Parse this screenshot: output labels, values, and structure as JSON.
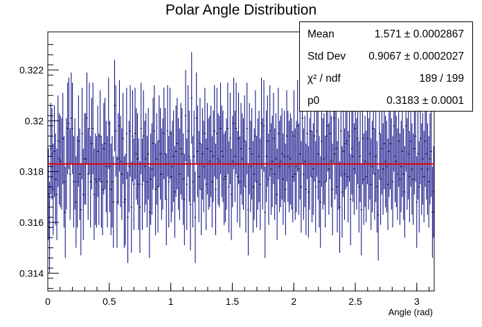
{
  "chart_data": {
    "type": "scatter",
    "title": "Polar Angle Distribution",
    "xlabel": "Angle (rad)",
    "ylabel": "",
    "xlim": [
      0,
      3.1416
    ],
    "ylim": [
      0.3133,
      0.3235
    ],
    "xticks": [
      "0",
      "0.5",
      "1",
      "1.5",
      "2",
      "2.5",
      "3"
    ],
    "xtick_values": [
      0,
      0.5,
      1,
      1.5,
      2,
      2.5,
      3
    ],
    "yticks": [
      "0.314",
      "0.316",
      "0.318",
      "0.32",
      "0.322"
    ],
    "ytick_values": [
      0.314,
      0.316,
      0.318,
      0.32,
      0.322
    ],
    "series": [
      {
        "name": "",
        "style": "errorbar",
        "color": "#000080",
        "bins": 314,
        "y": [
          0.3171,
          0.3158,
          0.3189,
          0.3187,
          0.3173,
          0.3188,
          0.3177,
          0.3171,
          0.3192,
          0.3185,
          0.3184,
          0.3183,
          0.3193,
          0.3176,
          0.3164,
          0.3183,
          0.3197,
          0.3199,
          0.3179,
          0.3201,
          0.3197,
          0.3176,
          0.3183,
          0.3168,
          0.3176,
          0.3192,
          0.3179,
          0.3165,
          0.3195,
          0.3171,
          0.3185,
          0.3185,
          0.3201,
          0.3179,
          0.3197,
          0.3176,
          0.3191,
          0.3197,
          0.3171,
          0.3177,
          0.3176,
          0.3188,
          0.3177,
          0.3194,
          0.3176,
          0.3173,
          0.3189,
          0.3191,
          0.3182,
          0.3176,
          0.3199,
          0.3182,
          0.3173,
          0.3176,
          0.3168,
          0.3206,
          0.3196,
          0.3168,
          0.3185,
          0.3198,
          0.3184,
          0.3179,
          0.3193,
          0.3168,
          0.3169,
          0.3195,
          0.3162,
          0.3182,
          0.3196,
          0.3166,
          0.3194,
          0.3175,
          0.3195,
          0.3187,
          0.3185,
          0.3175,
          0.3166,
          0.3197,
          0.3175,
          0.3194,
          0.3182,
          0.3185,
          0.3176,
          0.3187,
          0.3164,
          0.3177,
          0.3181,
          0.3191,
          0.3196,
          0.3173,
          0.3185,
          0.3174,
          0.3192,
          0.3187,
          0.3179,
          0.3183,
          0.3195,
          0.3187,
          0.3169,
          0.3196,
          0.3176,
          0.3195,
          0.3178,
          0.3182,
          0.3186,
          0.3172,
          0.3188,
          0.3191,
          0.3183,
          0.3179,
          0.3189,
          0.3187,
          0.3177,
          0.3169,
          0.3202,
          0.3175,
          0.3196,
          0.3186,
          0.3167,
          0.3209,
          0.3176,
          0.3186,
          0.3162,
          0.3201,
          0.3188,
          0.3178,
          0.3191,
          0.3173,
          0.3187,
          0.3182,
          0.3195,
          0.3175,
          0.3189,
          0.3183,
          0.3184,
          0.3188,
          0.3176,
          0.3186,
          0.3196,
          0.3173,
          0.3195,
          0.3185,
          0.3184,
          0.3197,
          0.3188,
          0.3186,
          0.3177,
          0.3178,
          0.3183,
          0.3197,
          0.3174,
          0.3193,
          0.3171,
          0.3184,
          0.3199,
          0.3186,
          0.3197,
          0.3178,
          0.3193,
          0.3176,
          0.3189,
          0.3185,
          0.3183,
          0.3192,
          0.3174,
          0.3197,
          0.3165,
          0.3189,
          0.3182,
          0.3187,
          0.3174,
          0.3179,
          0.3194,
          0.3176,
          0.3183,
          0.3186,
          0.3175,
          0.3199,
          0.3183,
          0.3198,
          0.3164,
          0.3186,
          0.3192,
          0.3177,
          0.3196,
          0.3181,
          0.3184,
          0.3193,
          0.3179,
          0.3185,
          0.3171,
          0.3195,
          0.3182,
          0.3184,
          0.3187,
          0.3177,
          0.3186,
          0.3173,
          0.3194,
          0.3186,
          0.3182,
          0.3185,
          0.3183,
          0.3178,
          0.3194,
          0.3179,
          0.3182,
          0.3198,
          0.3181,
          0.3187,
          0.3174,
          0.3201,
          0.3179,
          0.3184,
          0.3173,
          0.3195,
          0.3172,
          0.3183,
          0.3196,
          0.3178,
          0.3181,
          0.3194,
          0.3174,
          0.3196,
          0.3187,
          0.3176,
          0.3168,
          0.3192,
          0.3183,
          0.3185,
          0.3176,
          0.3194,
          0.3198,
          0.3181,
          0.3195,
          0.3184,
          0.3173,
          0.3201,
          0.3187,
          0.3189,
          0.3174,
          0.3183,
          0.3166,
          0.3196,
          0.3172,
          0.3188,
          0.3179,
          0.3191,
          0.3192,
          0.3178,
          0.3194,
          0.3169,
          0.3189,
          0.3186,
          0.3181,
          0.3197,
          0.3183,
          0.3193,
          0.3174,
          0.3186,
          0.3165,
          0.3193,
          0.3177,
          0.3184,
          0.3178,
          0.3193,
          0.3183,
          0.3187,
          0.3175,
          0.3182,
          0.3197,
          0.3179,
          0.3186,
          0.3174,
          0.3163,
          0.3195,
          0.3177,
          0.3189,
          0.3181,
          0.3191,
          0.3184,
          0.3182,
          0.3175,
          0.3188,
          0.3191,
          0.3183,
          0.3176,
          0.3198,
          0.3186,
          0.3184,
          0.3179,
          0.3192,
          0.3177,
          0.3182,
          0.3188,
          0.3179,
          0.3172,
          0.3198,
          0.3183,
          0.3187,
          0.3178,
          0.3192,
          0.3181,
          0.3177,
          0.3189,
          0.3194,
          0.3168,
          0.3187,
          0.3174,
          0.3193,
          0.3181,
          0.3185,
          0.3178,
          0.3192,
          0.3187,
          0.3181,
          0.3176,
          0.3185,
          0.3188,
          0.3164,
          0.3172
        ],
        "error": 0.0018
      },
      {
        "name": "",
        "style": "line",
        "color": "#e00000",
        "y": [
          0.3183,
          0.3183
        ]
      }
    ],
    "stats": [
      {
        "key": "Mean",
        "value": "1.571 ± 0.0002867"
      },
      {
        "key": "Std Dev",
        "value": "0.9067 ± 0.0002027"
      },
      {
        "key": "χ² / ndf",
        "value": "189 / 199"
      },
      {
        "key": "p0",
        "value": "0.3183 ± 0.0001"
      }
    ]
  }
}
